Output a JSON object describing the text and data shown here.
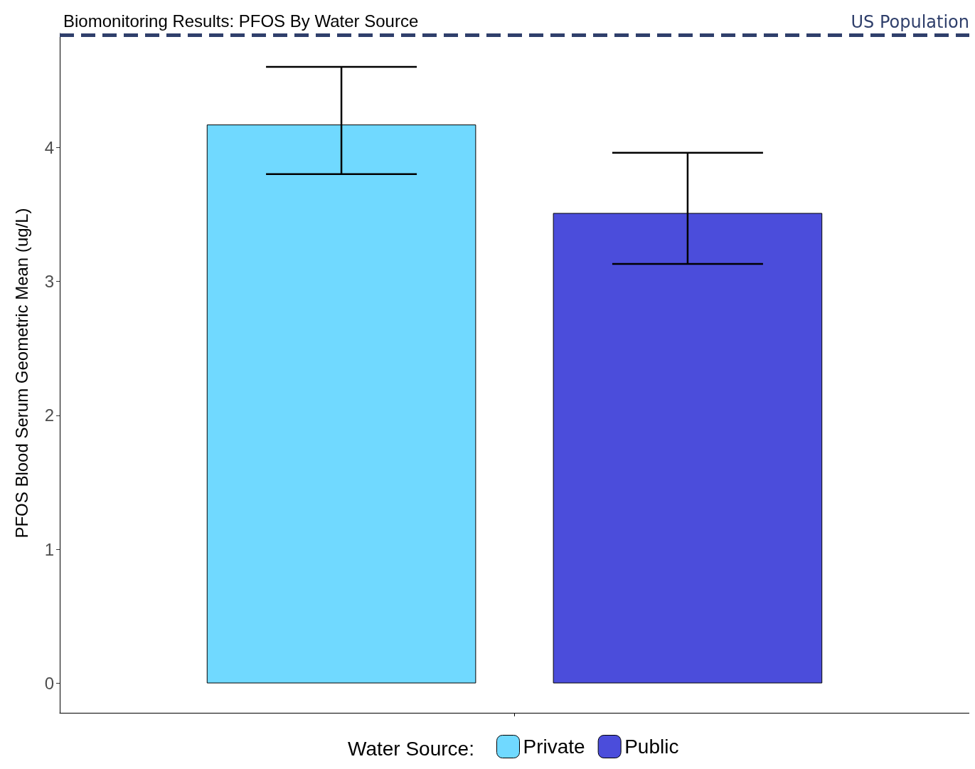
{
  "chart_data": {
    "type": "bar",
    "title": "Biomonitoring Results: PFOS By Water Source",
    "ylabel": "PFOS Blood Serum Geometric Mean (ug/L)",
    "legend_title": "Water Source:",
    "categories": [
      null
    ],
    "series": [
      {
        "name": "Private",
        "color": "#70d9ff",
        "values": [
          4.17
        ],
        "errors": [
          [
            3.8,
            4.6
          ]
        ]
      },
      {
        "name": "Public",
        "color": "#4b4ddb",
        "values": [
          3.51
        ],
        "errors": [
          [
            3.13,
            3.96
          ]
        ]
      }
    ],
    "ylim": [
      -0.22,
      4.85
    ],
    "yticks": [
      0,
      1,
      2,
      3,
      4
    ],
    "grid": false,
    "legend": "bottom",
    "ref_lines": [
      {
        "axis": "y",
        "value": 4.84,
        "label": "US Population",
        "color": "#2f3f6b",
        "line_style": "dashed"
      }
    ]
  }
}
